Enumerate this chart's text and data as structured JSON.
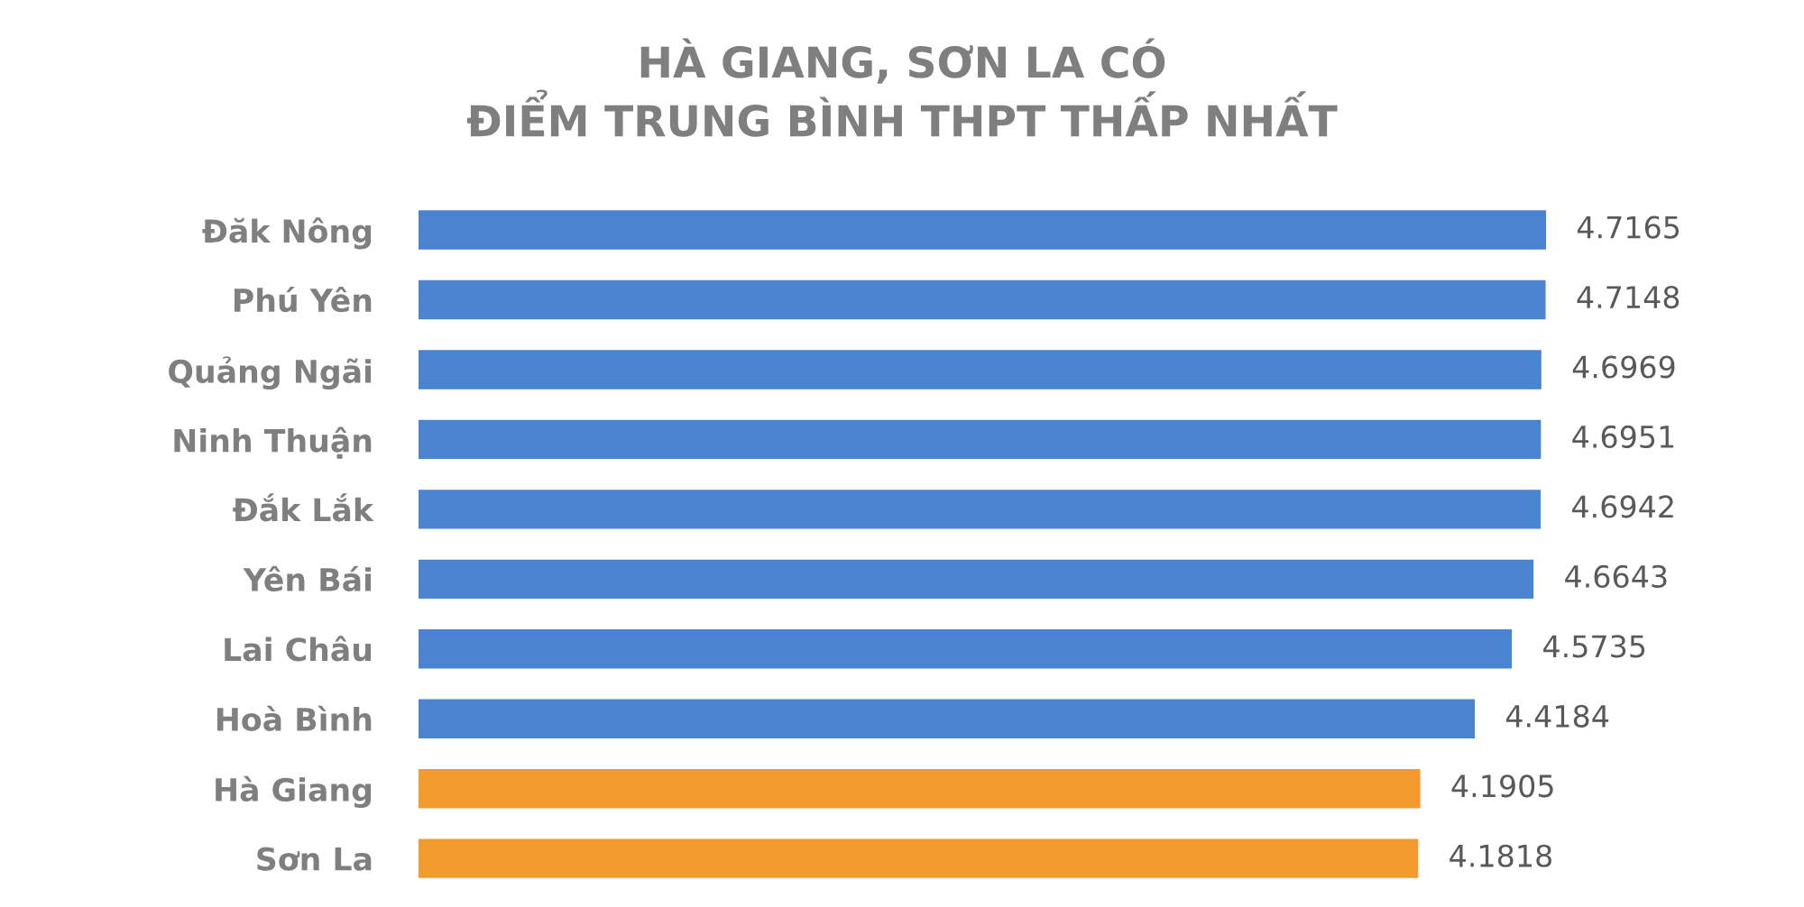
{
  "chart_data": {
    "type": "bar",
    "orientation": "horizontal",
    "title": "HÀ GIANG, SƠN LA CÓ\nĐIỂM TRUNG BÌNH THPT THẤP NHẤT",
    "categories": [
      "Đăk Nông",
      "Phú Yên",
      "Quảng Ngãi",
      "Ninh Thuận",
      "Đắk Lắk",
      "Yên Bái",
      "Lai Châu",
      "Hoà Bình",
      "Hà Giang",
      "Sơn La"
    ],
    "values": [
      4.7165,
      4.7148,
      4.6969,
      4.6951,
      4.6942,
      4.6643,
      4.5735,
      4.4184,
      4.1905,
      4.1818
    ],
    "colors": [
      "#4a83cf",
      "#4a83cf",
      "#4a83cf",
      "#4a83cf",
      "#4a83cf",
      "#4a83cf",
      "#4a83cf",
      "#4a83cf",
      "#f39b2e",
      "#f39b2e"
    ],
    "data_labels": true,
    "grid": false
  }
}
